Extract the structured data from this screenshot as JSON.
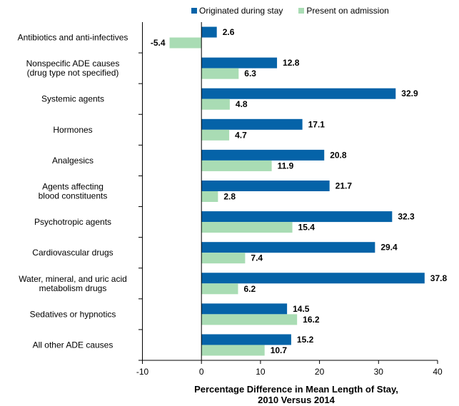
{
  "chart_data": {
    "type": "bar",
    "orientation": "horizontal",
    "categories": [
      "Antibiotics and anti-infectives",
      "Nonspecific ADE causes\n(drug type not specified)",
      "Systemic agents",
      "Hormones",
      "Analgesics",
      "Agents affecting\nblood constituents",
      "Psychotropic agents",
      "Cardiovascular drugs",
      "Water, mineral, and uric acid\nmetabolism drugs",
      "Sedatives or hypnotics",
      "All other ADE causes"
    ],
    "series": [
      {
        "name": "Originated during stay",
        "color": "#0563a8",
        "values": [
          2.6,
          12.8,
          32.9,
          17.1,
          20.8,
          21.7,
          32.3,
          29.4,
          37.8,
          14.5,
          15.2
        ]
      },
      {
        "name": "Present on admission",
        "color": "#a9dcb4",
        "values": [
          -5.4,
          6.3,
          4.8,
          4.7,
          11.9,
          2.8,
          15.4,
          7.4,
          6.2,
          16.2,
          10.7
        ]
      }
    ],
    "xlabel": "Percentage Difference in Mean Length of Stay,\n2010 Versus  2014",
    "xlim": [
      -10,
      40
    ],
    "xticks": [
      "-10",
      "0",
      "10",
      "20",
      "30",
      "40"
    ],
    "grid": false,
    "legend_position": "top",
    "data_labels": true
  }
}
